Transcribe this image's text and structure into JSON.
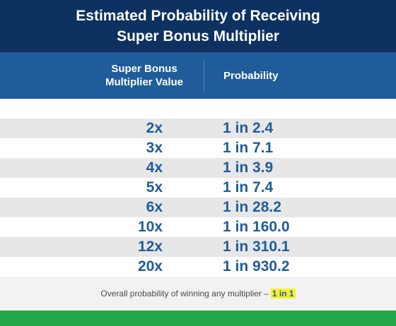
{
  "title": {
    "line1": "Estimated Probability of Receiving",
    "line2": "Super Bonus Multiplier"
  },
  "table": {
    "col1_header_line1": "Super Bonus",
    "col1_header_line2": "Multiplier Value",
    "col2_header": "Probability",
    "rows": [
      {
        "multiplier": "2x",
        "probability": "1 in 2.4"
      },
      {
        "multiplier": "3x",
        "probability": "1 in 7.1"
      },
      {
        "multiplier": "4x",
        "probability": "1 in 3.9"
      },
      {
        "multiplier": "5x",
        "probability": "1 in 7.4"
      },
      {
        "multiplier": "6x",
        "probability": "1 in 28.2"
      },
      {
        "multiplier": "10x",
        "probability": "1 in 160.0"
      },
      {
        "multiplier": "12x",
        "probability": "1 in 310.1"
      },
      {
        "multiplier": "20x",
        "probability": "1 in 930.2"
      }
    ]
  },
  "footer": {
    "text": "Overall probability of winning any multiplier –",
    "highlight": "1 in 1"
  },
  "colors": {
    "title_bg": "#0d3160",
    "header_bg": "#1f5c99",
    "value_text": "#1f5c99",
    "row_shade": "#e7e7e7",
    "highlight": "#f5f032",
    "bottom_bar": "#23a94b"
  }
}
